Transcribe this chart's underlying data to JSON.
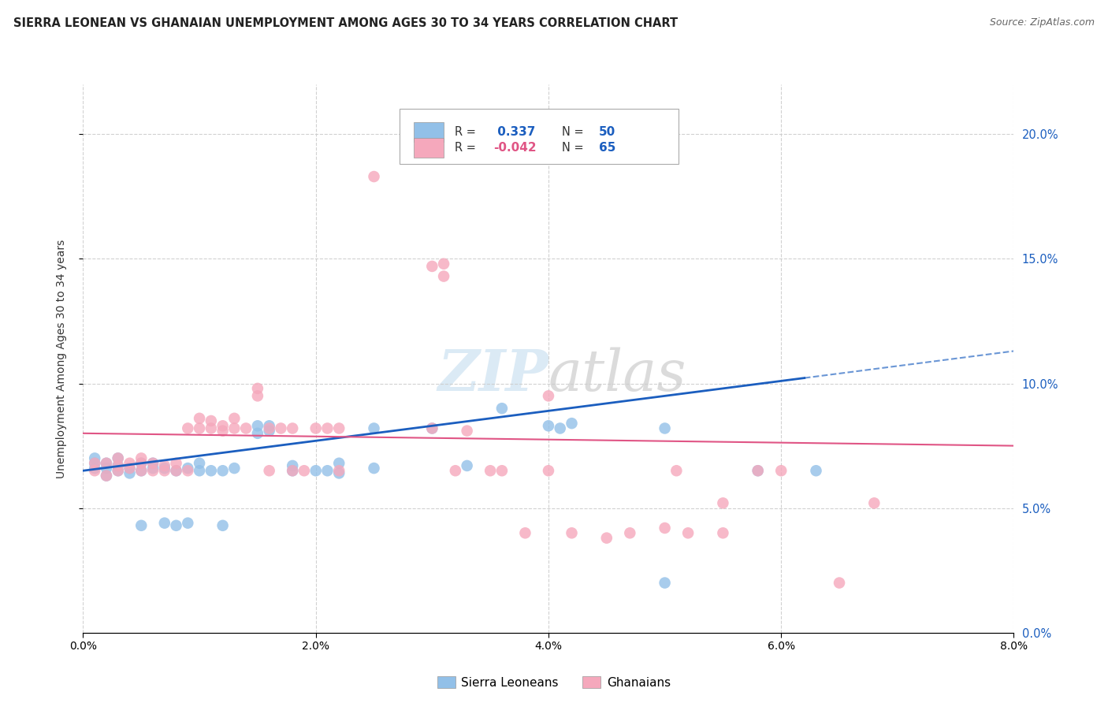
{
  "title": "SIERRA LEONEAN VS GHANAIAN UNEMPLOYMENT AMONG AGES 30 TO 34 YEARS CORRELATION CHART",
  "source": "Source: ZipAtlas.com",
  "ylabel": "Unemployment Among Ages 30 to 34 years",
  "xlim": [
    0.0,
    0.08
  ],
  "ylim": [
    0.0,
    0.22
  ],
  "xticks": [
    0.0,
    0.02,
    0.04,
    0.06,
    0.08
  ],
  "yticks": [
    0.05,
    0.1,
    0.15,
    0.2
  ],
  "sl_color": "#92C0E8",
  "gh_color": "#F5A8BC",
  "sl_line_color": "#1B5EBF",
  "gh_line_color": "#E05585",
  "sl_line_solid_end": 0.062,
  "background_color": "#ffffff",
  "grid_color": "#cccccc",
  "title_color": "#222222",
  "watermark": "ZIPatlas",
  "sl_R": 0.337,
  "sl_N": 50,
  "gh_R": -0.042,
  "gh_N": 65,
  "sierra_leoneans": [
    [
      0.001,
      0.066
    ],
    [
      0.001,
      0.068
    ],
    [
      0.001,
      0.07
    ],
    [
      0.002,
      0.063
    ],
    [
      0.002,
      0.066
    ],
    [
      0.002,
      0.068
    ],
    [
      0.003,
      0.065
    ],
    [
      0.003,
      0.067
    ],
    [
      0.003,
      0.07
    ],
    [
      0.004,
      0.064
    ],
    [
      0.004,
      0.066
    ],
    [
      0.005,
      0.043
    ],
    [
      0.005,
      0.065
    ],
    [
      0.005,
      0.068
    ],
    [
      0.006,
      0.066
    ],
    [
      0.006,
      0.068
    ],
    [
      0.007,
      0.044
    ],
    [
      0.007,
      0.066
    ],
    [
      0.008,
      0.043
    ],
    [
      0.008,
      0.065
    ],
    [
      0.009,
      0.044
    ],
    [
      0.009,
      0.066
    ],
    [
      0.01,
      0.065
    ],
    [
      0.01,
      0.068
    ],
    [
      0.011,
      0.065
    ],
    [
      0.012,
      0.043
    ],
    [
      0.012,
      0.065
    ],
    [
      0.013,
      0.066
    ],
    [
      0.015,
      0.08
    ],
    [
      0.015,
      0.083
    ],
    [
      0.016,
      0.081
    ],
    [
      0.016,
      0.083
    ],
    [
      0.018,
      0.065
    ],
    [
      0.018,
      0.067
    ],
    [
      0.02,
      0.065
    ],
    [
      0.021,
      0.065
    ],
    [
      0.022,
      0.064
    ],
    [
      0.022,
      0.068
    ],
    [
      0.025,
      0.066
    ],
    [
      0.025,
      0.082
    ],
    [
      0.03,
      0.082
    ],
    [
      0.033,
      0.067
    ],
    [
      0.036,
      0.09
    ],
    [
      0.04,
      0.083
    ],
    [
      0.041,
      0.082
    ],
    [
      0.042,
      0.084
    ],
    [
      0.05,
      0.082
    ],
    [
      0.05,
      0.02
    ],
    [
      0.058,
      0.065
    ],
    [
      0.063,
      0.065
    ]
  ],
  "ghanaians": [
    [
      0.001,
      0.065
    ],
    [
      0.001,
      0.068
    ],
    [
      0.002,
      0.063
    ],
    [
      0.002,
      0.068
    ],
    [
      0.003,
      0.065
    ],
    [
      0.003,
      0.067
    ],
    [
      0.003,
      0.07
    ],
    [
      0.004,
      0.066
    ],
    [
      0.004,
      0.068
    ],
    [
      0.005,
      0.065
    ],
    [
      0.005,
      0.068
    ],
    [
      0.005,
      0.07
    ],
    [
      0.006,
      0.065
    ],
    [
      0.006,
      0.068
    ],
    [
      0.007,
      0.065
    ],
    [
      0.007,
      0.067
    ],
    [
      0.008,
      0.065
    ],
    [
      0.008,
      0.068
    ],
    [
      0.009,
      0.065
    ],
    [
      0.009,
      0.082
    ],
    [
      0.01,
      0.082
    ],
    [
      0.01,
      0.086
    ],
    [
      0.011,
      0.082
    ],
    [
      0.011,
      0.085
    ],
    [
      0.012,
      0.081
    ],
    [
      0.012,
      0.083
    ],
    [
      0.013,
      0.082
    ],
    [
      0.013,
      0.086
    ],
    [
      0.014,
      0.082
    ],
    [
      0.015,
      0.095
    ],
    [
      0.015,
      0.098
    ],
    [
      0.016,
      0.065
    ],
    [
      0.016,
      0.082
    ],
    [
      0.017,
      0.082
    ],
    [
      0.018,
      0.065
    ],
    [
      0.018,
      0.082
    ],
    [
      0.019,
      0.065
    ],
    [
      0.02,
      0.082
    ],
    [
      0.021,
      0.082
    ],
    [
      0.022,
      0.065
    ],
    [
      0.022,
      0.082
    ],
    [
      0.025,
      0.183
    ],
    [
      0.03,
      0.082
    ],
    [
      0.03,
      0.147
    ],
    [
      0.031,
      0.143
    ],
    [
      0.031,
      0.148
    ],
    [
      0.032,
      0.065
    ],
    [
      0.033,
      0.081
    ],
    [
      0.035,
      0.065
    ],
    [
      0.036,
      0.065
    ],
    [
      0.038,
      0.04
    ],
    [
      0.04,
      0.065
    ],
    [
      0.04,
      0.095
    ],
    [
      0.042,
      0.04
    ],
    [
      0.045,
      0.038
    ],
    [
      0.047,
      0.04
    ],
    [
      0.05,
      0.042
    ],
    [
      0.051,
      0.065
    ],
    [
      0.052,
      0.04
    ],
    [
      0.055,
      0.04
    ],
    [
      0.055,
      0.052
    ],
    [
      0.058,
      0.065
    ],
    [
      0.06,
      0.065
    ],
    [
      0.065,
      0.02
    ],
    [
      0.068,
      0.052
    ]
  ]
}
